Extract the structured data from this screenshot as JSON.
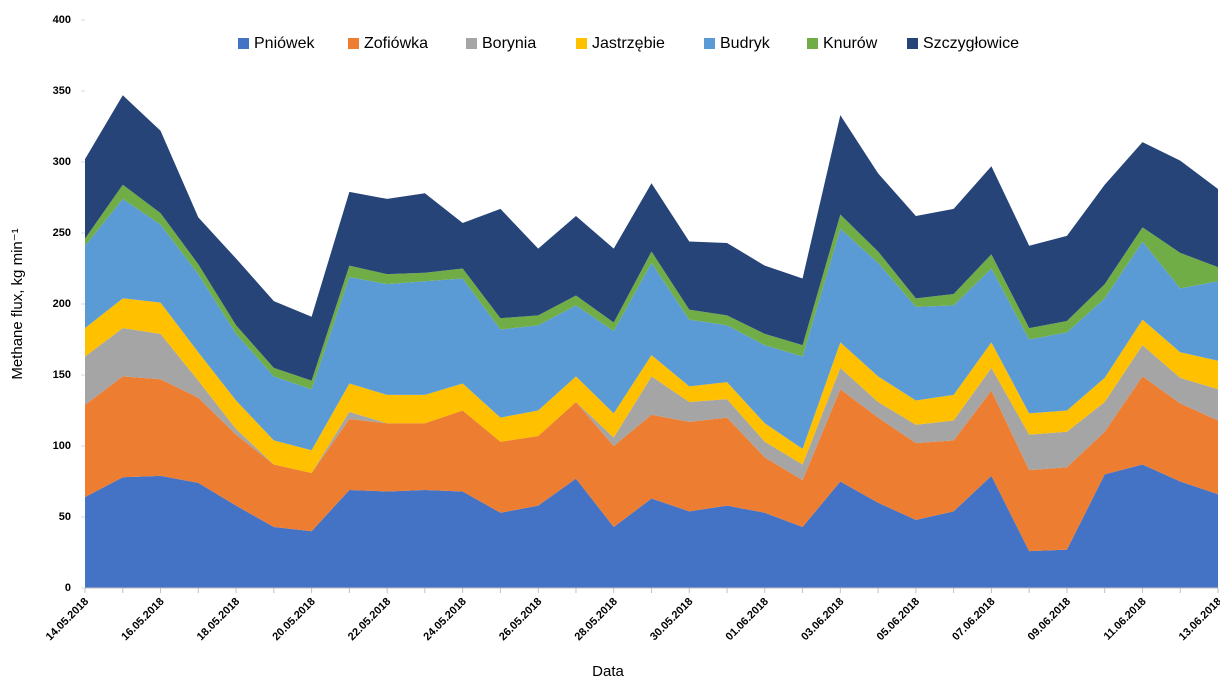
{
  "chart_data": {
    "type": "stacked_area",
    "x_label": "Data",
    "y_label": "Methane flux, kg min⁻¹",
    "categories": [
      "14.05.2018",
      null,
      "16.05.2018",
      null,
      "18.05.2018",
      null,
      "20.05.2018",
      null,
      "22.05.2018",
      null,
      "24.05.2018",
      null,
      "26.05.2018",
      null,
      "28.05.2018",
      null,
      "30.05.2018",
      null,
      "01.06.2018",
      null,
      "03.06.2018",
      null,
      "05.06.2018",
      null,
      "07.06.2018",
      null,
      "09.06.2018",
      null,
      "11.06.2018",
      null,
      "13.06.2018"
    ],
    "series": [
      {
        "name": "Pniówek",
        "color": "#4472c4",
        "values": [
          64,
          78,
          79,
          74,
          58,
          43,
          40,
          69,
          68,
          69,
          68,
          53,
          58,
          77,
          43,
          63,
          54,
          58,
          53,
          43,
          75,
          60,
          48,
          54,
          79,
          26,
          27,
          80,
          87,
          75,
          66
        ]
      },
      {
        "name": "Zofiówka",
        "color": "#ed7d31",
        "values": [
          65,
          71,
          68,
          60,
          50,
          44,
          41,
          50,
          48,
          47,
          57,
          50,
          49,
          54,
          57,
          59,
          63,
          62,
          39,
          33,
          65,
          60,
          54,
          50,
          60,
          57,
          58,
          30,
          62,
          55,
          52
        ]
      },
      {
        "name": "Borynia",
        "color": "#a5a5a5",
        "values": [
          34,
          34,
          32,
          12,
          4,
          0,
          0,
          5,
          0,
          0,
          0,
          0,
          0,
          0,
          6,
          27,
          14,
          13,
          11,
          11,
          15,
          11,
          13,
          14,
          16,
          25,
          25,
          21,
          22,
          18,
          22
        ]
      },
      {
        "name": "Jastrzębie",
        "color": "#ffc000",
        "values": [
          20,
          21,
          22,
          20,
          20,
          17,
          16,
          20,
          20,
          20,
          19,
          17,
          18,
          18,
          17,
          15,
          11,
          12,
          13,
          11,
          18,
          18,
          17,
          18,
          18,
          15,
          15,
          17,
          18,
          18,
          20
        ]
      },
      {
        "name": "Budryk",
        "color": "#5b9bd5",
        "values": [
          58,
          70,
          55,
          55,
          47,
          45,
          43,
          75,
          78,
          80,
          74,
          62,
          60,
          50,
          58,
          65,
          47,
          40,
          55,
          65,
          80,
          80,
          66,
          63,
          52,
          52,
          55,
          56,
          55,
          45,
          56
        ]
      },
      {
        "name": "Knurów",
        "color": "#70ad47",
        "values": [
          5,
          10,
          8,
          7,
          6,
          6,
          6,
          8,
          7,
          6,
          7,
          8,
          7,
          7,
          6,
          8,
          7,
          7,
          8,
          8,
          10,
          8,
          6,
          8,
          10,
          8,
          8,
          10,
          10,
          25,
          10
        ]
      },
      {
        "name": "Szczygłowice",
        "color": "#264478",
        "values": [
          56,
          63,
          58,
          33,
          47,
          47,
          45,
          52,
          53,
          56,
          32,
          77,
          47,
          56,
          52,
          48,
          48,
          51,
          48,
          47,
          70,
          55,
          58,
          60,
          62,
          58,
          60,
          70,
          60,
          65,
          55
        ]
      }
    ],
    "ylim": [
      0,
      400
    ],
    "yticks": [
      0,
      50,
      100,
      150,
      200,
      250,
      300,
      350,
      400
    ],
    "legend": "top"
  }
}
